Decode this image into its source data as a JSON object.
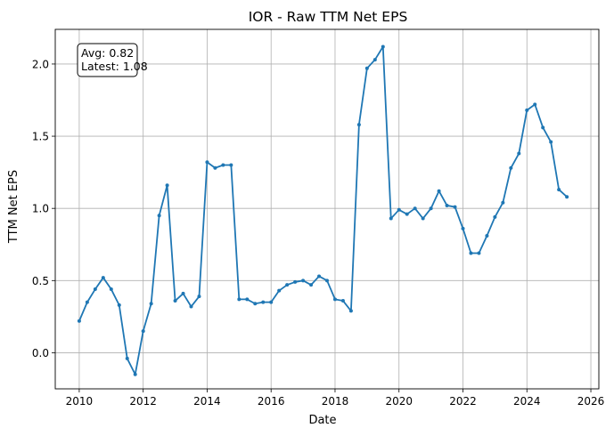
{
  "chart_data": {
    "type": "line",
    "title": "IOR - Raw TTM Net EPS",
    "xlabel": "Date",
    "ylabel": "TTM Net EPS",
    "xlim": [
      2009.25,
      2026.25
    ],
    "ylim": [
      -0.25,
      2.24
    ],
    "grid": true,
    "x_ticks": [
      2010,
      2012,
      2014,
      2016,
      2018,
      2020,
      2022,
      2024,
      2026
    ],
    "y_ticks": [
      0.0,
      0.5,
      1.0,
      1.5,
      2.0
    ],
    "annotation": {
      "lines": [
        "Avg: 0.82",
        "Latest: 1.08"
      ],
      "position": "top-left"
    },
    "series": [
      {
        "color": "#1f77b4",
        "x": [
          2010.0,
          2010.25,
          2010.5,
          2010.75,
          2011.0,
          2011.25,
          2011.5,
          2011.75,
          2012.0,
          2012.25,
          2012.5,
          2012.75,
          2013.0,
          2013.25,
          2013.5,
          2013.75,
          2014.0,
          2014.25,
          2014.5,
          2014.75,
          2015.0,
          2015.25,
          2015.5,
          2015.75,
          2016.0,
          2016.25,
          2016.5,
          2016.75,
          2017.0,
          2017.25,
          2017.5,
          2017.75,
          2018.0,
          2018.25,
          2018.5,
          2018.75,
          2019.0,
          2019.25,
          2019.5,
          2019.75,
          2020.0,
          2020.25,
          2020.5,
          2020.75,
          2021.0,
          2021.25,
          2021.5,
          2021.75,
          2022.0,
          2022.25,
          2022.5,
          2022.75,
          2023.0,
          2023.25,
          2023.5,
          2023.75,
          2024.0,
          2024.25,
          2024.5,
          2024.75,
          2025.0,
          2025.25
        ],
        "y": [
          0.22,
          0.35,
          0.44,
          0.52,
          0.44,
          0.33,
          -0.04,
          -0.15,
          0.15,
          0.34,
          0.95,
          1.16,
          0.36,
          0.41,
          0.32,
          0.39,
          1.32,
          1.28,
          1.3,
          1.3,
          0.37,
          0.37,
          0.34,
          0.35,
          0.35,
          0.43,
          0.47,
          0.49,
          0.5,
          0.47,
          0.53,
          0.5,
          0.37,
          0.36,
          0.29,
          1.58,
          1.97,
          2.03,
          2.12,
          0.93,
          0.99,
          0.96,
          1.0,
          0.93,
          1.0,
          1.12,
          1.02,
          1.01,
          0.86,
          0.69,
          0.69,
          0.81,
          0.94,
          1.04,
          1.28,
          1.38,
          1.68,
          1.72,
          1.56,
          1.46,
          1.13,
          1.08
        ]
      }
    ]
  }
}
